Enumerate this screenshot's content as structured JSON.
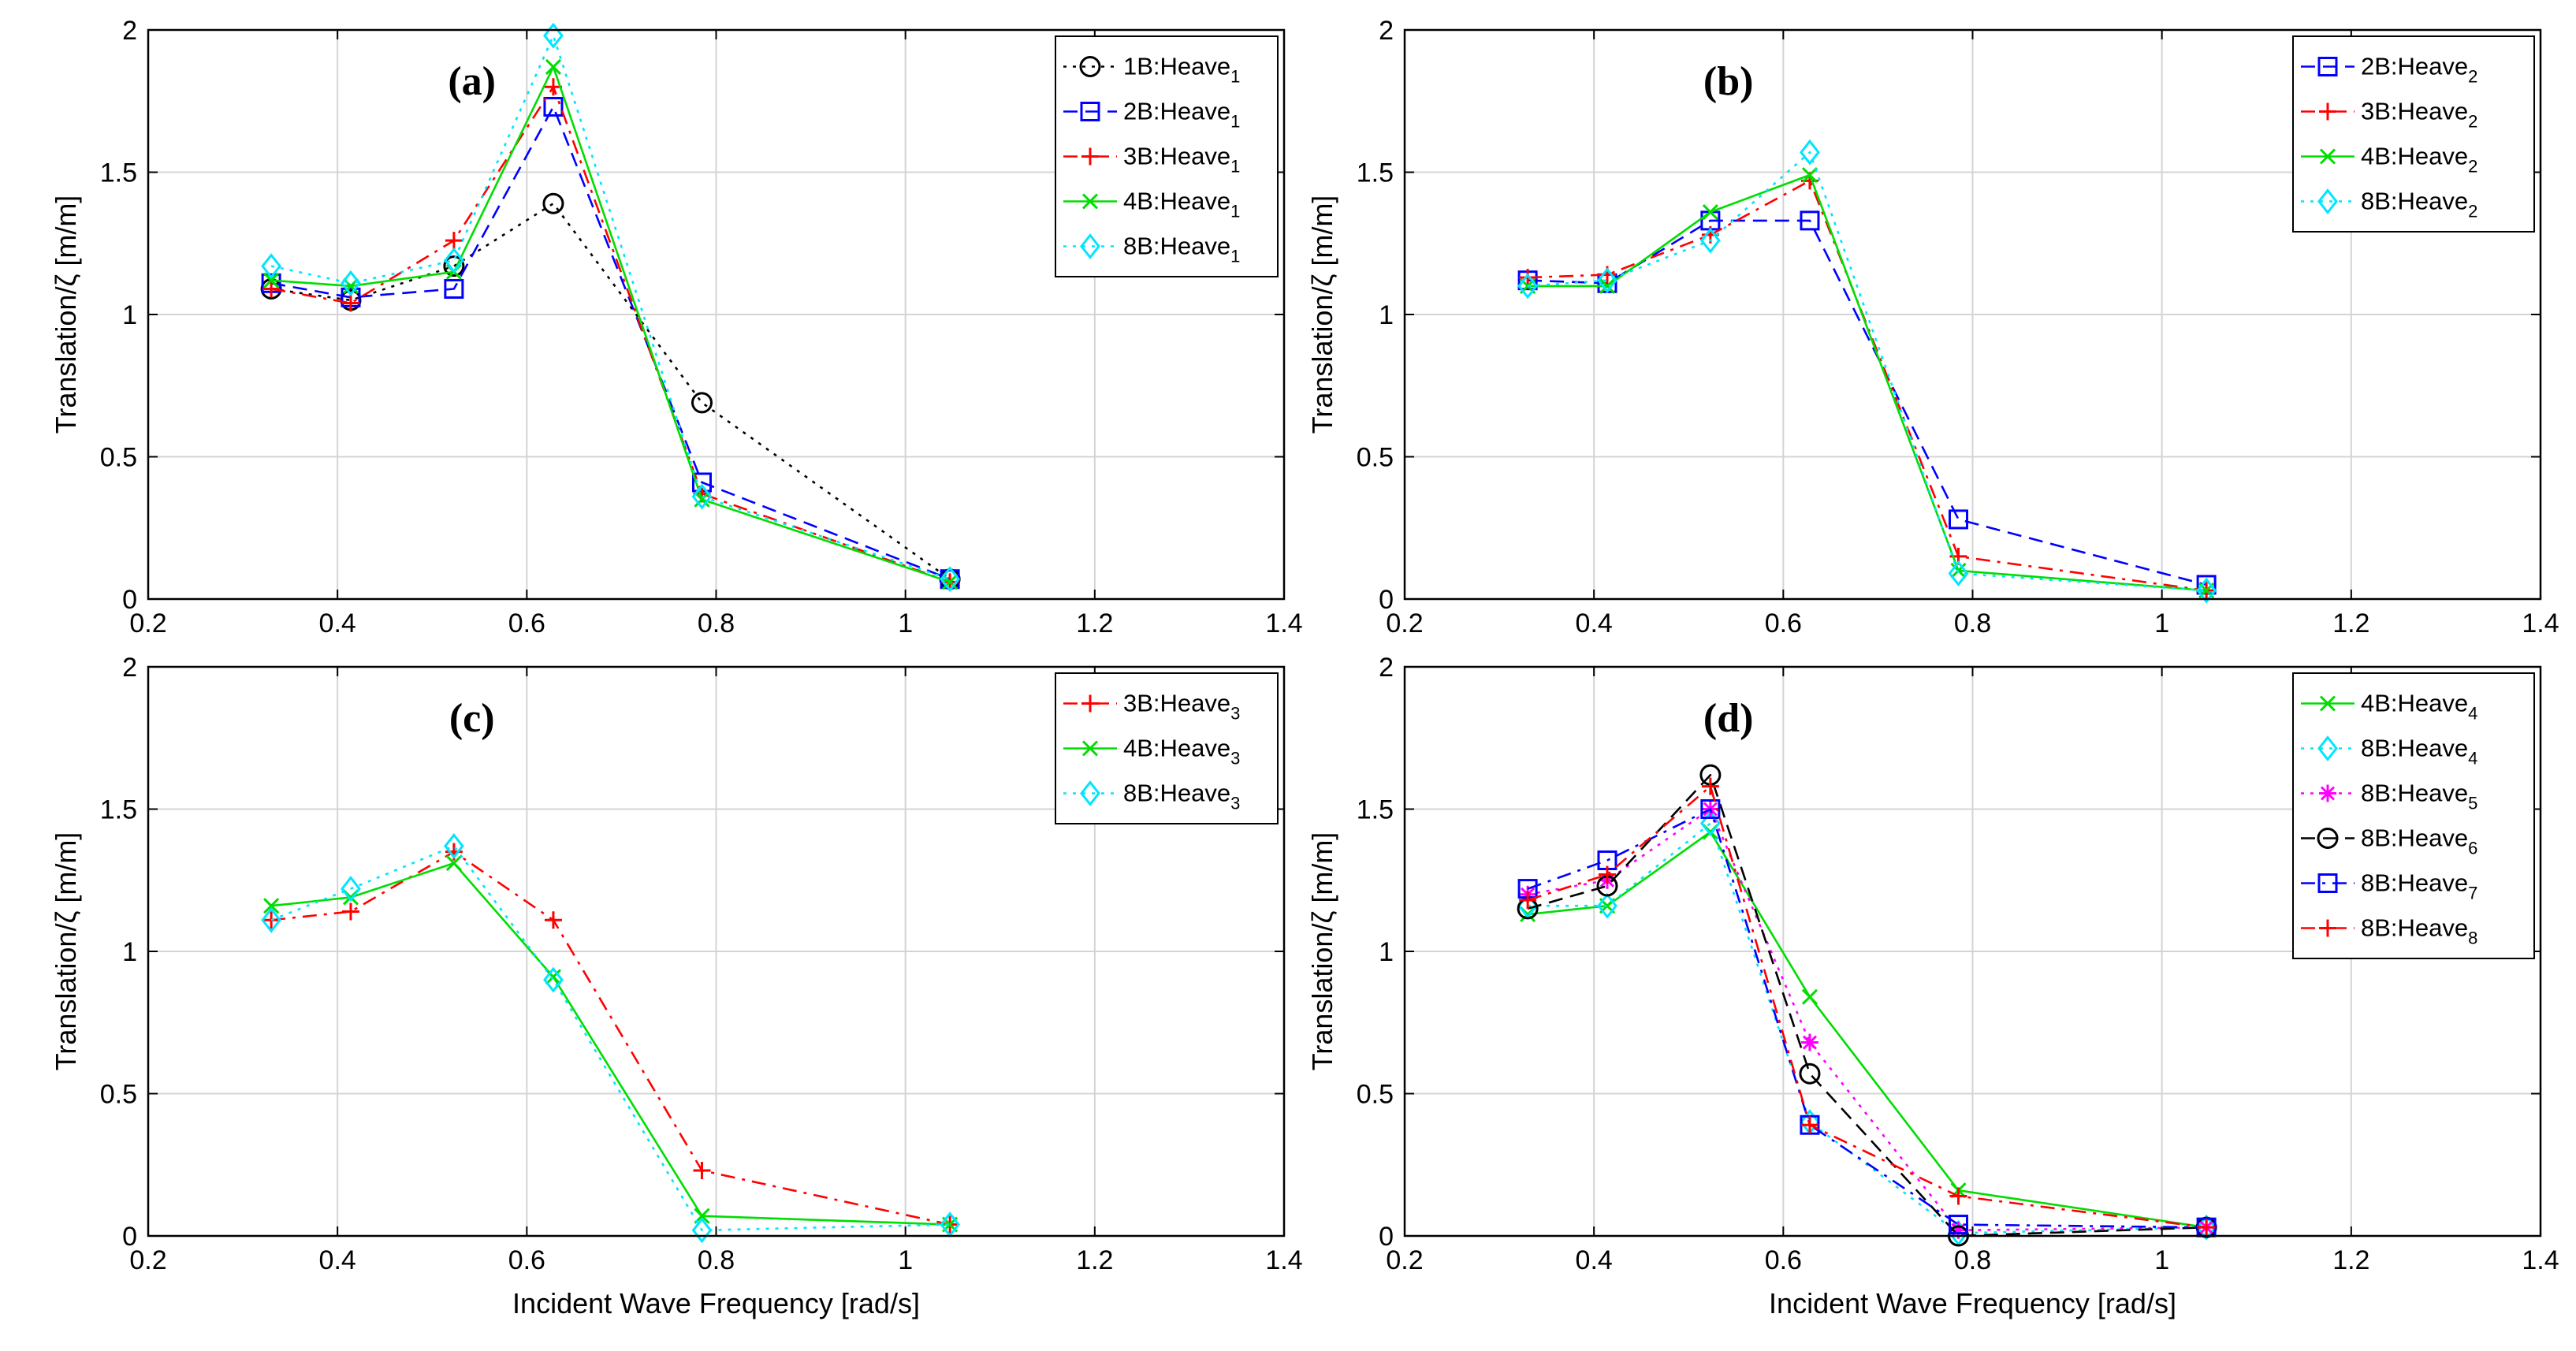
{
  "figure": {
    "xlabel": "Incident Wave Frequency [rad/s]",
    "ylabel": "Translation/ζ [m/m]"
  },
  "chart_data": [
    {
      "type": "line",
      "label": "(a)",
      "xlim": [
        0.2,
        1.4
      ],
      "ylim": [
        0,
        2
      ],
      "xticks": [
        "0.2",
        "0.4",
        "0.6",
        "0.8",
        "1",
        "1.2",
        "1.4"
      ],
      "yticks": [
        "0",
        "0.5",
        "1",
        "1.5",
        "2"
      ],
      "xlabel": "",
      "ylabel": "Translation/ζ [m/m]",
      "grid": true,
      "legend_position": "top-right",
      "series": [
        {
          "name": "1B:Heave",
          "sub": "1",
          "color": "#000000",
          "dash": "dotted",
          "marker": "circle",
          "x": [
            0.33,
            0.414,
            0.523,
            0.628,
            0.785,
            1.047
          ],
          "y": [
            1.09,
            1.05,
            1.17,
            1.39,
            0.69,
            0.07
          ]
        },
        {
          "name": "2B:Heave",
          "sub": "1",
          "color": "#0000ff",
          "dash": "dashed",
          "marker": "square",
          "x": [
            0.33,
            0.414,
            0.523,
            0.628,
            0.785,
            1.047
          ],
          "y": [
            1.11,
            1.06,
            1.09,
            1.73,
            0.41,
            0.07
          ]
        },
        {
          "name": "3B:Heave",
          "sub": "1",
          "color": "#ff0000",
          "dash": "dashdot",
          "marker": "plus",
          "x": [
            0.33,
            0.414,
            0.523,
            0.628,
            0.785,
            1.047
          ],
          "y": [
            1.09,
            1.04,
            1.26,
            1.8,
            0.37,
            0.06
          ]
        },
        {
          "name": "4B:Heave",
          "sub": "1",
          "color": "#00dd00",
          "dash": "solid",
          "marker": "x",
          "x": [
            0.33,
            0.414,
            0.523,
            0.628,
            0.785,
            1.047
          ],
          "y": [
            1.12,
            1.1,
            1.15,
            1.87,
            0.35,
            0.06
          ]
        },
        {
          "name": "8B:Heave",
          "sub": "1",
          "color": "#00e5ff",
          "dash": "dotted",
          "marker": "diamond",
          "x": [
            0.33,
            0.414,
            0.523,
            0.628,
            0.785,
            1.047
          ],
          "y": [
            1.17,
            1.11,
            1.19,
            1.98,
            0.36,
            0.07
          ]
        }
      ]
    },
    {
      "type": "line",
      "label": "(b)",
      "xlim": [
        0.2,
        1.4
      ],
      "ylim": [
        0,
        2
      ],
      "xticks": [
        "0.2",
        "0.4",
        "0.6",
        "0.8",
        "1",
        "1.2",
        "1.4"
      ],
      "yticks": [
        "0",
        "0.5",
        "1",
        "1.5",
        "2"
      ],
      "xlabel": "",
      "ylabel": "Translation/ζ [m/m]",
      "grid": true,
      "legend_position": "top-right",
      "series": [
        {
          "name": "2B:Heave",
          "sub": "2",
          "color": "#0000ff",
          "dash": "dashed",
          "marker": "square",
          "x": [
            0.33,
            0.414,
            0.523,
            0.628,
            0.785,
            1.047
          ],
          "y": [
            1.12,
            1.11,
            1.33,
            1.33,
            0.28,
            0.05
          ]
        },
        {
          "name": "3B:Heave",
          "sub": "2",
          "color": "#ff0000",
          "dash": "dashdot",
          "marker": "plus",
          "x": [
            0.33,
            0.414,
            0.523,
            0.628,
            0.785,
            1.047
          ],
          "y": [
            1.13,
            1.14,
            1.28,
            1.47,
            0.15,
            0.03
          ]
        },
        {
          "name": "4B:Heave",
          "sub": "2",
          "color": "#00dd00",
          "dash": "solid",
          "marker": "x",
          "x": [
            0.33,
            0.414,
            0.523,
            0.628,
            0.785,
            1.047
          ],
          "y": [
            1.1,
            1.1,
            1.36,
            1.49,
            0.1,
            0.03
          ]
        },
        {
          "name": "8B:Heave",
          "sub": "2",
          "color": "#00e5ff",
          "dash": "dotted",
          "marker": "diamond",
          "x": [
            0.33,
            0.414,
            0.523,
            0.628,
            0.785,
            1.047
          ],
          "y": [
            1.1,
            1.12,
            1.26,
            1.57,
            0.09,
            0.03
          ]
        }
      ]
    },
    {
      "type": "line",
      "label": "(c)",
      "xlim": [
        0.2,
        1.4
      ],
      "ylim": [
        0,
        2
      ],
      "xticks": [
        "0.2",
        "0.4",
        "0.6",
        "0.8",
        "1",
        "1.2",
        "1.4"
      ],
      "yticks": [
        "0",
        "0.5",
        "1",
        "1.5",
        "2"
      ],
      "xlabel": "Incident Wave Frequency [rad/s]",
      "ylabel": "Translation/ζ [m/m]",
      "grid": true,
      "legend_position": "top-right",
      "series": [
        {
          "name": "3B:Heave",
          "sub": "3",
          "color": "#ff0000",
          "dash": "dashdot",
          "marker": "plus",
          "x": [
            0.33,
            0.414,
            0.523,
            0.628,
            0.785,
            1.047
          ],
          "y": [
            1.11,
            1.14,
            1.35,
            1.11,
            0.23,
            0.04
          ]
        },
        {
          "name": "4B:Heave",
          "sub": "3",
          "color": "#00dd00",
          "dash": "solid",
          "marker": "x",
          "x": [
            0.33,
            0.414,
            0.523,
            0.628,
            0.785,
            1.047
          ],
          "y": [
            1.16,
            1.19,
            1.31,
            0.91,
            0.07,
            0.04
          ]
        },
        {
          "name": "8B:Heave",
          "sub": "3",
          "color": "#00e5ff",
          "dash": "dotted",
          "marker": "diamond",
          "x": [
            0.33,
            0.414,
            0.523,
            0.628,
            0.785,
            1.047
          ],
          "y": [
            1.11,
            1.22,
            1.37,
            0.9,
            0.02,
            0.04
          ]
        }
      ]
    },
    {
      "type": "line",
      "label": "(d)",
      "xlim": [
        0.2,
        1.4
      ],
      "ylim": [
        0,
        2
      ],
      "xticks": [
        "0.2",
        "0.4",
        "0.6",
        "0.8",
        "1",
        "1.2",
        "1.4"
      ],
      "yticks": [
        "0",
        "0.5",
        "1",
        "1.5",
        "2"
      ],
      "xlabel": "Incident Wave Frequency [rad/s]",
      "ylabel": "Translation/ζ [m/m]",
      "grid": true,
      "legend_position": "top-right",
      "series": [
        {
          "name": "4B:Heave",
          "sub": "4",
          "color": "#00dd00",
          "dash": "solid",
          "marker": "x",
          "x": [
            0.33,
            0.414,
            0.523,
            0.628,
            0.785,
            1.047
          ],
          "y": [
            1.13,
            1.16,
            1.42,
            0.84,
            0.16,
            0.03
          ]
        },
        {
          "name": "8B:Heave",
          "sub": "4",
          "color": "#00e5ff",
          "dash": "dotted",
          "marker": "diamond",
          "x": [
            0.33,
            0.414,
            0.523,
            0.628,
            0.785,
            1.047
          ],
          "y": [
            1.16,
            1.16,
            1.45,
            0.4,
            0.01,
            0.03
          ]
        },
        {
          "name": "8B:Heave",
          "sub": "5",
          "color": "#ff00ff",
          "dash": "dotted",
          "marker": "star",
          "x": [
            0.33,
            0.414,
            0.523,
            0.628,
            0.785,
            1.047
          ],
          "y": [
            1.2,
            1.25,
            1.5,
            0.68,
            0.02,
            0.03
          ]
        },
        {
          "name": "8B:Heave",
          "sub": "6",
          "color": "#000000",
          "dash": "dashed",
          "marker": "circle",
          "x": [
            0.33,
            0.414,
            0.523,
            0.628,
            0.785,
            1.047
          ],
          "y": [
            1.15,
            1.23,
            1.62,
            0.57,
            0.0,
            0.03
          ]
        },
        {
          "name": "8B:Heave",
          "sub": "7",
          "color": "#0000ff",
          "dash": "dashdot",
          "marker": "square",
          "x": [
            0.33,
            0.414,
            0.523,
            0.628,
            0.785,
            1.047
          ],
          "y": [
            1.22,
            1.32,
            1.5,
            0.39,
            0.04,
            0.03
          ]
        },
        {
          "name": "8B:Heave",
          "sub": "8",
          "color": "#ff0000",
          "dash": "dashdot",
          "marker": "plus",
          "x": [
            0.33,
            0.414,
            0.523,
            0.628,
            0.785,
            1.047
          ],
          "y": [
            1.18,
            1.27,
            1.58,
            0.39,
            0.14,
            0.03
          ]
        }
      ]
    }
  ]
}
